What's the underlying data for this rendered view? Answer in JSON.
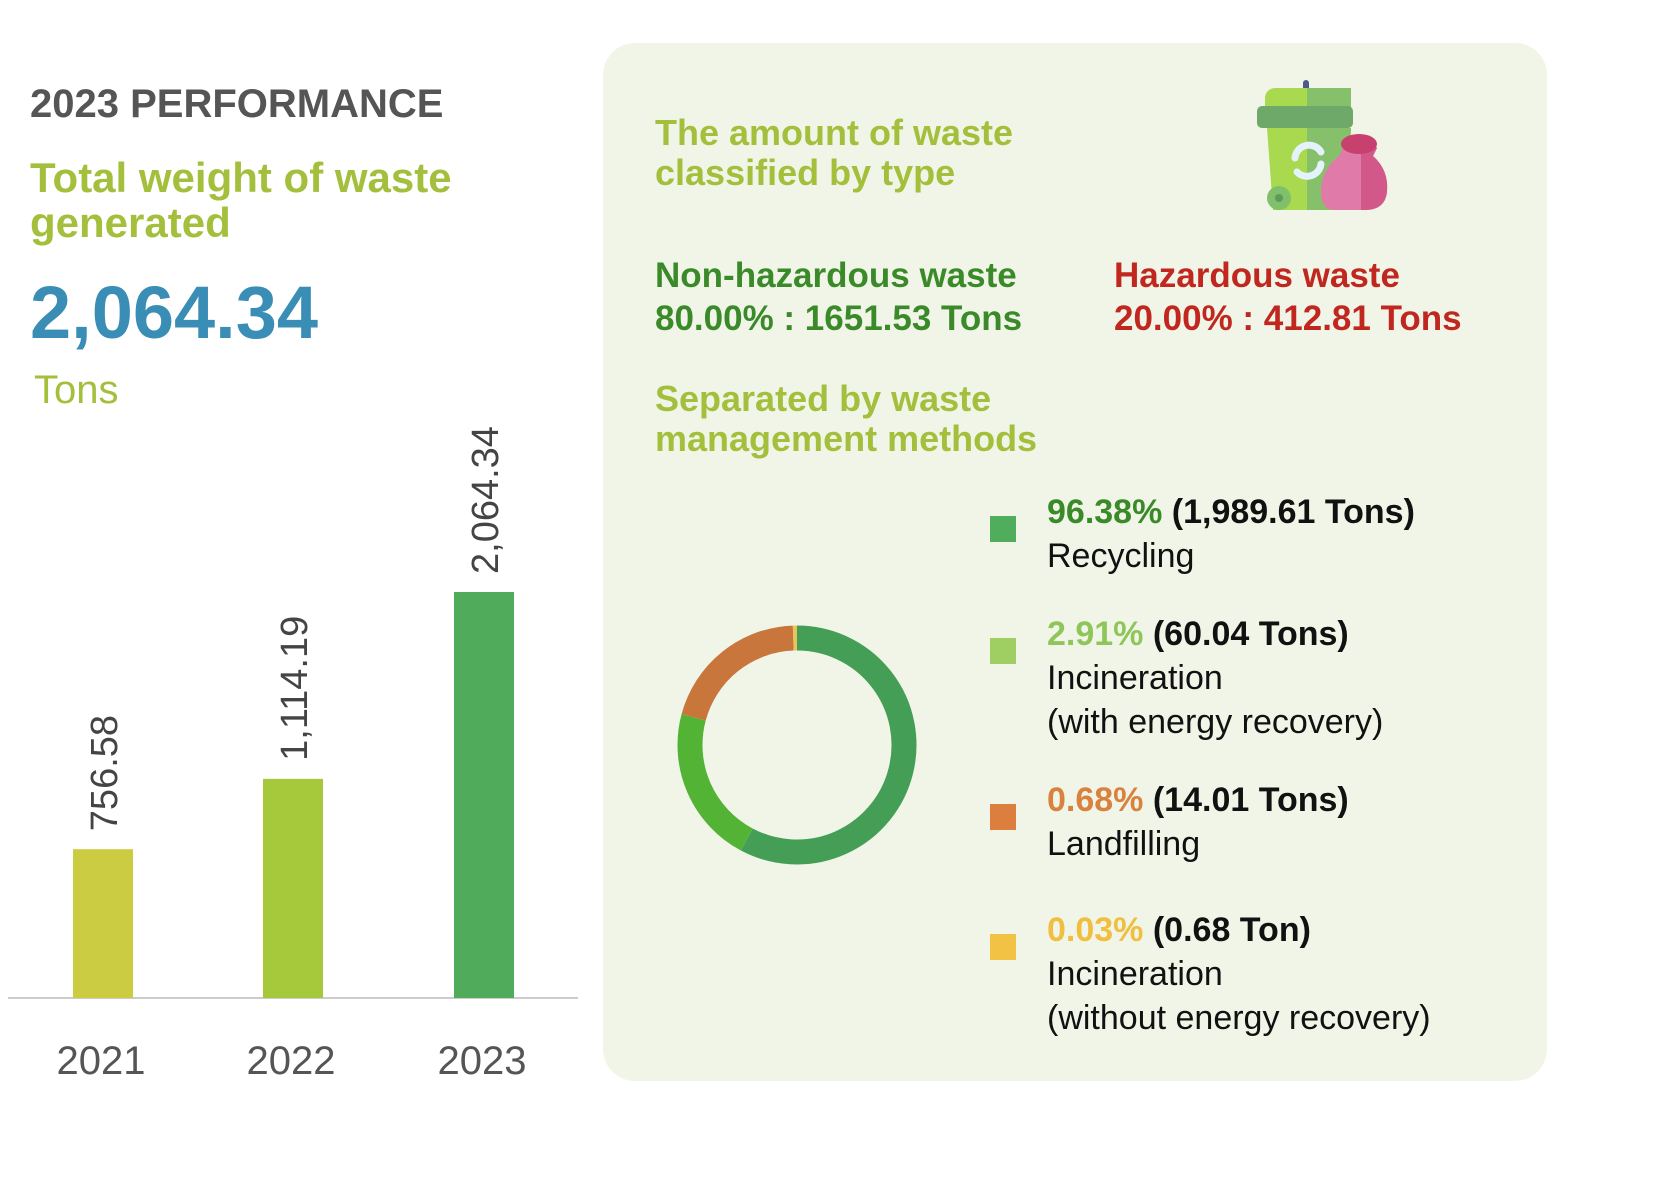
{
  "left": {
    "heading": "2023 PERFORMANCE",
    "title": "Total weight of waste generated",
    "total": "2,064.34",
    "unit": "Tons"
  },
  "right": {
    "title": "The amount of waste classified by type",
    "non_hazardous": {
      "label": "Non-hazardous waste",
      "value": "80.00% : 1651.53 Tons"
    },
    "hazardous": {
      "label": "Hazardous waste",
      "value": "20.00% : 412.81 Tons"
    },
    "methods_title": "Separated by waste management methods",
    "icon": "recycle-bin-icon"
  },
  "chart_data": [
    {
      "type": "bar",
      "categories": [
        "2021",
        "2022",
        "2023"
      ],
      "values": [
        756.58,
        1114.19,
        2064.34
      ],
      "labels": [
        "756.58",
        "1,114.19",
        "2,064.34"
      ],
      "colors": [
        "#cccc42",
        "#a6c93c",
        "#50ac5a"
      ],
      "ylim": [
        0,
        2064.34
      ]
    },
    {
      "type": "pie",
      "donut": true,
      "slices": [
        {
          "pct": "96.38%",
          "tons": "(1,989.61 Tons)",
          "label": "Recycling",
          "label2": "",
          "value": 96.38,
          "color": "#459e55",
          "swatch": "#4fad5b",
          "pct_color": "#3a8a2a"
        },
        {
          "pct": "2.91%",
          "tons": "(60.04 Tons)",
          "label": "Incineration",
          "label2": "(with energy recovery)",
          "value": 2.91,
          "color": "#53b335",
          "swatch": "#9fcf62",
          "pct_color": "#8fc65a"
        },
        {
          "pct": "0.68%",
          "tons": " (14.01 Tons)",
          "label": "Landfilling",
          "label2": "",
          "value": 0.68,
          "color": "#c8763c",
          "swatch": "#dc7f3e",
          "pct_color": "#d9823f"
        },
        {
          "pct": "0.03%",
          "tons": "(0.68 Ton)",
          "label": "Incineration",
          "label2": "(without energy recovery)",
          "value": 0.03,
          "color": "#e8c45c",
          "swatch": "#f2c244",
          "pct_color": "#f0bf40"
        }
      ]
    }
  ]
}
